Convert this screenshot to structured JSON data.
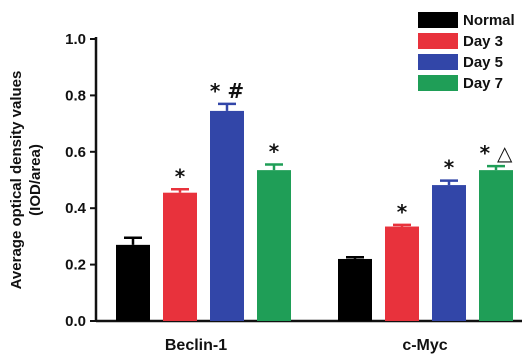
{
  "chart_data": {
    "type": "bar",
    "ylabel_line1": "Average optical density values",
    "ylabel_line2": "(IOD/area)",
    "xlabel": "",
    "ylim": [
      0,
      1.0
    ],
    "y_ticks": [
      "0.0",
      "0.2",
      "0.4",
      "0.6",
      "0.8",
      "1.0"
    ],
    "categories": [
      "Beclin-1",
      "c-Myc"
    ],
    "series": [
      {
        "name": "Normal",
        "color": "#000000",
        "values": [
          0.27,
          0.22
        ],
        "errors": [
          0.025,
          0.006
        ],
        "annotations": [
          "",
          ""
        ]
      },
      {
        "name": "Day 3",
        "color": "#e8323c",
        "values": [
          0.455,
          0.335
        ],
        "errors": [
          0.012,
          0.006
        ],
        "annotations": [
          "*",
          "*"
        ]
      },
      {
        "name": "Day 5",
        "color": "#3246a8",
        "values": [
          0.745,
          0.482
        ],
        "errors": [
          0.025,
          0.016
        ],
        "annotations": [
          "* #",
          "*"
        ]
      },
      {
        "name": "Day 7",
        "color": "#1f9e57",
        "values": [
          0.535,
          0.535
        ],
        "errors": [
          0.02,
          0.014
        ],
        "annotations": [
          "*",
          "* △"
        ]
      }
    ],
    "legend_position": "top-right",
    "grid": false
  }
}
